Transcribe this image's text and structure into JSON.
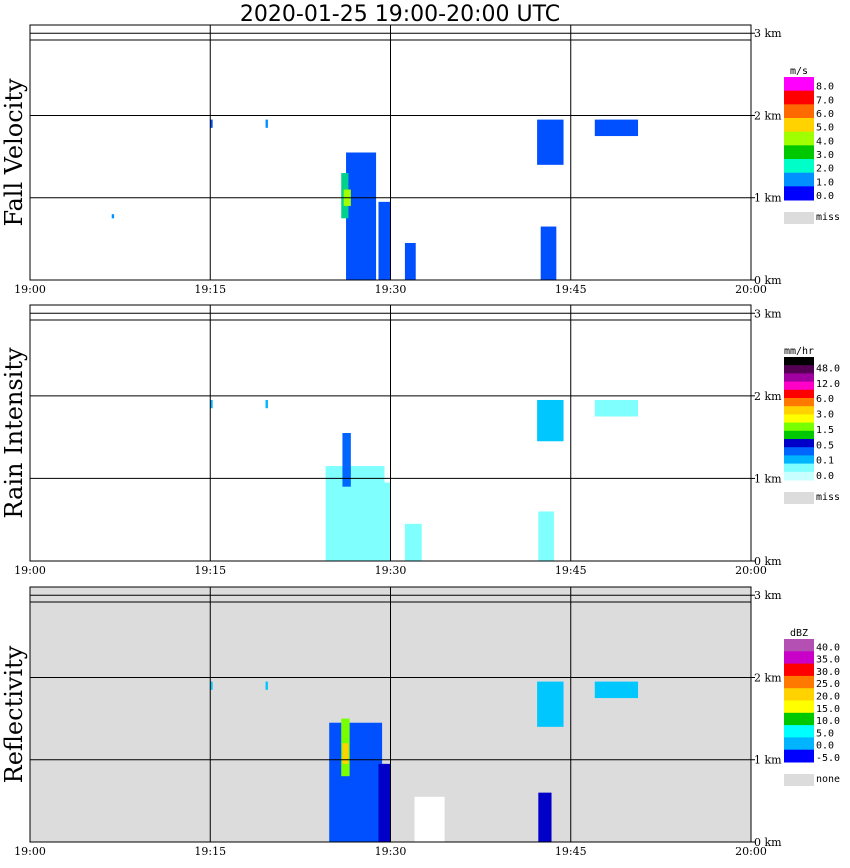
{
  "chart_data": {
    "type": "heatmap",
    "title": "2020-01-25   19:00-20:00 UTC",
    "x_ticks": [
      "19:00",
      "19:15",
      "19:30",
      "19:45",
      "20:00"
    ],
    "y_ticks": [
      "0 km",
      "1 km",
      "2 km",
      "3 km"
    ],
    "x_range_minutes": [
      0,
      60
    ],
    "y_range_km": [
      0,
      3.1
    ],
    "grid": true,
    "panels": [
      {
        "ylabel": "Fall Velocity",
        "background": "#ffffff",
        "legend": {
          "unit": "m/s",
          "labels": [
            "8.0",
            "7.0",
            "6.0",
            "5.0",
            "4.0",
            "3.0",
            "2.0",
            "1.0",
            "0.0"
          ],
          "colors": [
            "#ff00ff",
            "#ff0000",
            "#ff6a00",
            "#ffd200",
            "#a0ff00",
            "#00c800",
            "#00ffc8",
            "#0090ff",
            "#0000ff"
          ],
          "miss_label": "miss",
          "miss_color": "#dcdcdc"
        },
        "echoes": [
          {
            "t": [
              26.3,
              28.8
            ],
            "h": [
              0,
              1.55
            ],
            "color": "#0050ff"
          },
          {
            "t": [
              25.9,
              26.5
            ],
            "h": [
              0.75,
              1.3
            ],
            "color": "#00d28c"
          },
          {
            "t": [
              26.1,
              26.7
            ],
            "h": [
              0.9,
              1.1
            ],
            "color": "#a0ff00"
          },
          {
            "t": [
              29.0,
              30.0
            ],
            "h": [
              0,
              0.95
            ],
            "color": "#0050ff"
          },
          {
            "t": [
              31.2,
              32.1
            ],
            "h": [
              0,
              0.45
            ],
            "color": "#0050ff"
          },
          {
            "t": [
              42.5,
              43.8
            ],
            "h": [
              0,
              0.65
            ],
            "color": "#0050ff"
          },
          {
            "t": [
              42.2,
              44.4
            ],
            "h": [
              1.4,
              1.95
            ],
            "color": "#0050ff"
          },
          {
            "t": [
              47.0,
              50.6
            ],
            "h": [
              1.75,
              1.95
            ],
            "color": "#0050ff"
          },
          {
            "t": [
              15.0,
              15.2
            ],
            "h": [
              1.85,
              1.95
            ],
            "color": "#0050ff"
          },
          {
            "t": [
              19.6,
              19.8
            ],
            "h": [
              1.85,
              1.95
            ],
            "color": "#0090ff"
          },
          {
            "t": [
              6.8,
              7.0
            ],
            "h": [
              0.75,
              0.8
            ],
            "color": "#0090ff"
          }
        ]
      },
      {
        "ylabel": "Rain Intensity",
        "background": "#ffffff",
        "legend": {
          "unit": "mm/hr",
          "labels": [
            "48.0",
            "12.0",
            "6.0",
            "3.0",
            "1.5",
            "0.5",
            "0.1",
            "0.0"
          ],
          "colors": [
            "#000000",
            "#550055",
            "#a000a0",
            "#ff00c8",
            "#ff0000",
            "#ff7800",
            "#ffd200",
            "#ffff00",
            "#78ff00",
            "#00c800",
            "#0000c8",
            "#0064ff",
            "#00b4ff",
            "#80ffff",
            "#c8ffff"
          ],
          "miss_label": "miss",
          "miss_color": "#dcdcdc"
        },
        "echoes": [
          {
            "t": [
              24.6,
              29.5
            ],
            "h": [
              0,
              1.15
            ],
            "color": "#80ffff"
          },
          {
            "t": [
              26.0,
              26.7
            ],
            "h": [
              0.9,
              1.55
            ],
            "color": "#0064ff"
          },
          {
            "t": [
              29.1,
              30.0
            ],
            "h": [
              0,
              0.95
            ],
            "color": "#80ffff"
          },
          {
            "t": [
              31.2,
              32.6
            ],
            "h": [
              0,
              0.45
            ],
            "color": "#80ffff"
          },
          {
            "t": [
              42.3,
              43.6
            ],
            "h": [
              0,
              0.6
            ],
            "color": "#80ffff"
          },
          {
            "t": [
              42.2,
              44.4
            ],
            "h": [
              1.45,
              1.95
            ],
            "color": "#00c8ff"
          },
          {
            "t": [
              47.0,
              50.6
            ],
            "h": [
              1.75,
              1.95
            ],
            "color": "#80ffff"
          },
          {
            "t": [
              15.0,
              15.2
            ],
            "h": [
              1.85,
              1.95
            ],
            "color": "#00b4ff"
          },
          {
            "t": [
              19.6,
              19.8
            ],
            "h": [
              1.85,
              1.95
            ],
            "color": "#00b4ff"
          }
        ]
      },
      {
        "ylabel": "Reflectivity",
        "background": "#dcdcdc",
        "legend": {
          "unit": "dBZ",
          "labels": [
            "40.0",
            "35.0",
            "30.0",
            "25.0",
            "20.0",
            "15.0",
            "10.0",
            "5.0",
            "0.0",
            "-5.0"
          ],
          "colors": [
            "#b450b4",
            "#c800c8",
            "#ff0000",
            "#ff7800",
            "#ffd200",
            "#ffff00",
            "#00c800",
            "#00ffff",
            "#00b4ff",
            "#0000ff"
          ],
          "miss_label": "none",
          "miss_color": "#dcdcdc"
        },
        "echoes": [
          {
            "t": [
              24.9,
              29.3
            ],
            "h": [
              0,
              1.45
            ],
            "color": "#0050ff"
          },
          {
            "t": [
              25.9,
              26.6
            ],
            "h": [
              0.8,
              1.5
            ],
            "color": "#78ff00"
          },
          {
            "t": [
              26.0,
              26.5
            ],
            "h": [
              0.95,
              1.2
            ],
            "color": "#ffd200"
          },
          {
            "t": [
              29.0,
              30.0
            ],
            "h": [
              0,
              0.95
            ],
            "color": "#0000c8"
          },
          {
            "t": [
              32.0,
              34.5
            ],
            "h": [
              0,
              0.55
            ],
            "color": "#ffffff"
          },
          {
            "t": [
              42.3,
              43.4
            ],
            "h": [
              0,
              0.6
            ],
            "color": "#0000c8"
          },
          {
            "t": [
              42.2,
              44.4
            ],
            "h": [
              1.4,
              1.95
            ],
            "color": "#00c8ff"
          },
          {
            "t": [
              47.0,
              50.6
            ],
            "h": [
              1.75,
              1.95
            ],
            "color": "#00c8ff"
          },
          {
            "t": [
              15.0,
              15.2
            ],
            "h": [
              1.85,
              1.95
            ],
            "color": "#00c8ff"
          },
          {
            "t": [
              19.6,
              19.8
            ],
            "h": [
              1.85,
              1.95
            ],
            "color": "#00c8ff"
          }
        ]
      }
    ]
  }
}
